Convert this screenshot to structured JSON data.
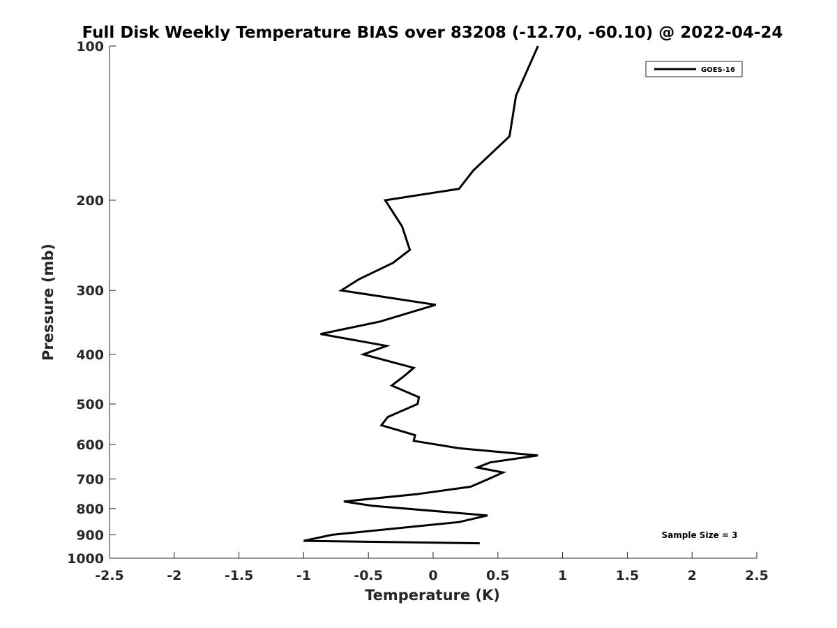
{
  "chart_data": {
    "type": "line",
    "title": "Full Disk Weekly Temperature BIAS over 83208 (-12.70, -60.10) @ 2022-04-24",
    "xlabel": "Temperature (K)",
    "ylabel": "Pressure (mb)",
    "xlim": [
      -2.5,
      2.5
    ],
    "ylim": [
      1000,
      100
    ],
    "yscale": "log",
    "y_reversed": true,
    "grid": false,
    "legend_position": "top-right",
    "xticks": [
      -2.5,
      -2,
      -1.5,
      -1,
      -0.5,
      0,
      0.5,
      1,
      1.5,
      2,
      2.5
    ],
    "xtick_labels": [
      "-2.5",
      "-2",
      "-1.5",
      "-1",
      "-0.5",
      "0",
      "0.5",
      "1",
      "1.5",
      "2",
      "2.5"
    ],
    "yticks": [
      100,
      200,
      300,
      400,
      500,
      600,
      700,
      800,
      900,
      1000
    ],
    "ytick_labels": [
      "100",
      "200",
      "300",
      "400",
      "500",
      "600",
      "700",
      "800",
      "900",
      "1000"
    ],
    "series": [
      {
        "name": "GOES-16",
        "color": "#000000",
        "points": [
          [
            0.81,
            100
          ],
          [
            0.64,
            125
          ],
          [
            0.59,
            150
          ],
          [
            0.31,
            175
          ],
          [
            0.2,
            190
          ],
          [
            -0.37,
            200
          ],
          [
            -0.24,
            225
          ],
          [
            -0.18,
            250
          ],
          [
            -0.31,
            265
          ],
          [
            -0.57,
            285
          ],
          [
            -0.71,
            300
          ],
          [
            0.02,
            320
          ],
          [
            -0.41,
            345
          ],
          [
            -0.87,
            365
          ],
          [
            -0.36,
            385
          ],
          [
            -0.54,
            400
          ],
          [
            -0.15,
            425
          ],
          [
            -0.22,
            440
          ],
          [
            -0.32,
            460
          ],
          [
            -0.11,
            485
          ],
          [
            -0.12,
            500
          ],
          [
            -0.35,
            530
          ],
          [
            -0.4,
            550
          ],
          [
            -0.14,
            575
          ],
          [
            -0.15,
            590
          ],
          [
            0.2,
            610
          ],
          [
            0.81,
            630
          ],
          [
            0.44,
            650
          ],
          [
            0.34,
            665
          ],
          [
            0.54,
            680
          ],
          [
            0.43,
            700
          ],
          [
            0.29,
            725
          ],
          [
            -0.13,
            750
          ],
          [
            -0.69,
            775
          ],
          [
            -0.47,
            790
          ],
          [
            0.42,
            825
          ],
          [
            0.2,
            850
          ],
          [
            -0.78,
            900
          ],
          [
            -1.0,
            925
          ],
          [
            0.36,
            935
          ]
        ]
      }
    ],
    "annotations": [
      "Sample Size = 3"
    ]
  },
  "colors": {
    "axis": "#262626",
    "line": "#000000",
    "background": "#ffffff"
  }
}
